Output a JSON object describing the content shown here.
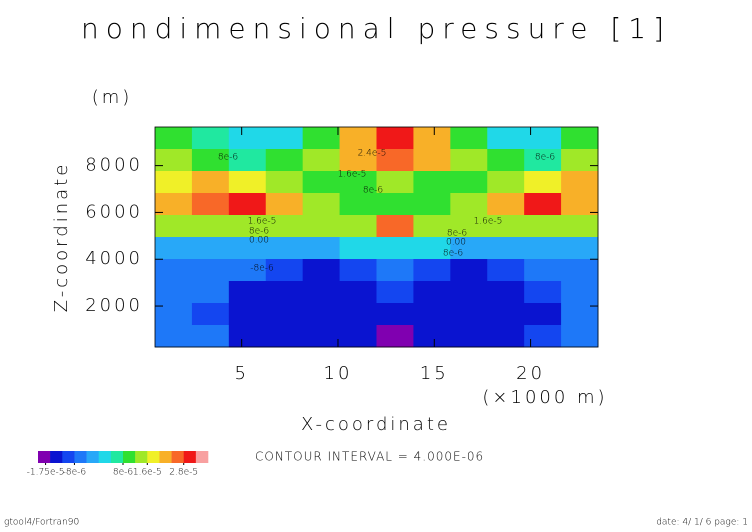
{
  "chart_data": {
    "type": "contour",
    "title": "nondimensional pressure [1]",
    "x_label": "X-coordinate",
    "y_label": "Z-coordinate",
    "y_unit": "(m)",
    "x_unit": "(×1000 m)",
    "xlim": [
      0.5,
      23.5
    ],
    "xticks": [
      5,
      10,
      15,
      20
    ],
    "ylim": [
      250,
      9650
    ],
    "yticks": [
      2000,
      4000,
      6000,
      8000
    ],
    "values": [
      [
        1e-05,
        6e-06,
        0,
        2e-06,
        1e-05,
        2.4e-05,
        3e-05,
        2.4e-05,
        1e-05,
        2e-06,
        0,
        1e-05
      ],
      [
        1.4e-05,
        1e-05,
        6e-06,
        8e-06,
        1.2e-05,
        2e-05,
        2.6e-05,
        2e-05,
        1.2e-05,
        8e-06,
        6e-06,
        1.4e-05
      ],
      [
        1.8e-05,
        2e-05,
        1.8e-05,
        1.4e-05,
        1e-05,
        1e-05,
        1.2e-05,
        1e-05,
        1e-05,
        1.4e-05,
        1.8e-05,
        2e-05
      ],
      [
        2e-05,
        2.6e-05,
        3e-05,
        2.2e-05,
        1.2e-05,
        8e-06,
        1e-05,
        8e-06,
        1.2e-05,
        2.2e-05,
        3e-05,
        2e-05
      ],
      [
        1.2e-05,
        1.4e-05,
        1.6e-05,
        1.4e-05,
        1.2e-05,
        1.6e-05,
        2.8e-05,
        1.6e-05,
        1.2e-05,
        1.4e-05,
        1.6e-05,
        1.2e-05
      ],
      [
        -4e-06,
        -4e-06,
        -4e-06,
        -3e-06,
        -2e-06,
        2e-06,
        4e-06,
        2e-06,
        -2e-06,
        -3e-06,
        -4e-06,
        -4e-06
      ],
      [
        -6e-06,
        -7e-06,
        -8e-06,
        -1e-05,
        -1.3e-05,
        -1e-05,
        -8e-06,
        -1e-05,
        -1.3e-05,
        -1e-05,
        -8e-06,
        -6e-06
      ],
      [
        -6e-06,
        -8e-06,
        -1.3e-05,
        -1.4e-05,
        -1.4e-05,
        -1.3e-05,
        -1.2e-05,
        -1.3e-05,
        -1.4e-05,
        -1.4e-05,
        -1e-05,
        -7e-06
      ],
      [
        -6e-06,
        -1e-05,
        -1.4e-05,
        -1.4e-05,
        -1.4e-05,
        -1.4e-05,
        -1.4e-05,
        -1.4e-05,
        -1.4e-05,
        -1.4e-05,
        -1.3e-05,
        -8e-06
      ],
      [
        -5e-06,
        -8e-06,
        -1.4e-05,
        -1.4e-05,
        -1.4e-05,
        -1.6e-05,
        -1.8e-05,
        -1.6e-05,
        -1.4e-05,
        -1.4e-05,
        -1e-05,
        -6e-06
      ]
    ],
    "clim": [
      -2e-05,
      3.6e-05
    ],
    "colors": [
      "#8000b0",
      "#0a14d0",
      "#1446f0",
      "#1e78f8",
      "#28a8f8",
      "#20d8e8",
      "#20e8a0",
      "#30e030",
      "#a0e828",
      "#f0f028",
      "#f8b028",
      "#f86828",
      "#f01818",
      "#f8a0a0"
    ],
    "colorbar_ticks": [
      {
        "value": -1.75e-05,
        "label": "-1.75e-5"
      },
      {
        "value": -8e-06,
        "label": "-8e-6"
      },
      {
        "value": 8e-06,
        "label": "8e-6"
      },
      {
        "value": 1.6e-05,
        "label": "1.6e-5"
      },
      {
        "value": 2.8e-05,
        "label": "2.8e-5"
      }
    ],
    "contour_labels": [
      "2.4e-5",
      "1.6e-5",
      "8e-6",
      "8e-6",
      "8e-6",
      "1.6e-5",
      "8e-6",
      "0.00",
      "1.6e-5",
      "8e-6",
      "0.00",
      "8e-6",
      "-8e-6"
    ],
    "contour_interval": "CONTOUR INTERVAL = 4.000E-06",
    "footer_left": "gtool4/Fortran90",
    "footer_right": "date: 4/ 1/ 6 page: 1"
  }
}
